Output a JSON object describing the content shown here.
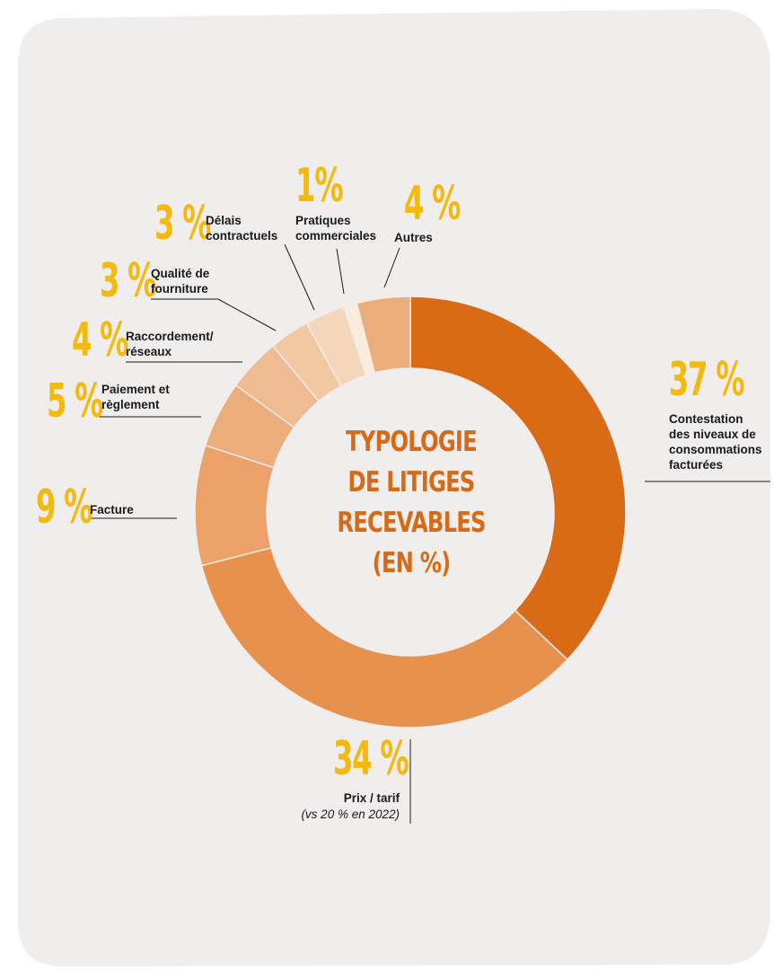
{
  "chart_data": {
    "type": "pie",
    "title_lines": [
      "TYPOLOGIE",
      "DE LITIGES",
      "RECEVABLES",
      "(EN %)"
    ],
    "slices": [
      {
        "label_lines": [
          "Contestation",
          "des niveaux de",
          "consommations",
          "facturées"
        ],
        "pct_text": "37 %",
        "value": 37,
        "color": "#d96a16"
      },
      {
        "label_lines": [
          "Prix / tarif"
        ],
        "note": "(vs 20 % en 2022)",
        "pct_text": "34 %",
        "value": 34,
        "color": "#e6914d"
      },
      {
        "label_lines": [
          "Facture"
        ],
        "pct_text": "9 %",
        "value": 9,
        "color": "#eba168"
      },
      {
        "label_lines": [
          "Paiement et",
          "règlement"
        ],
        "pct_text": "5 %",
        "value": 5,
        "color": "#ebad7b"
      },
      {
        "label_lines": [
          "Raccordement/",
          "réseaux"
        ],
        "pct_text": "4 %",
        "value": 4,
        "color": "#efbb92"
      },
      {
        "label_lines": [
          "Qualité de",
          "fourniture"
        ],
        "pct_text": "3 %",
        "value": 3,
        "color": "#f2c8a3"
      },
      {
        "label_lines": [
          "Délais",
          "contractuels"
        ],
        "pct_text": "3 %",
        "value": 3,
        "color": "#f5d6bb"
      },
      {
        "label_lines": [
          "Pratiques",
          "commerciales"
        ],
        "pct_text": "1%",
        "value": 1,
        "color": "#f9ecdd"
      },
      {
        "label_lines": [
          "Autres"
        ],
        "pct_text": "4 %",
        "value": 4,
        "color": "#ebad7b"
      }
    ]
  },
  "colors": {
    "background": "#f0eded",
    "percent_text": "#f3b90e",
    "title_text": "#d66a17"
  }
}
